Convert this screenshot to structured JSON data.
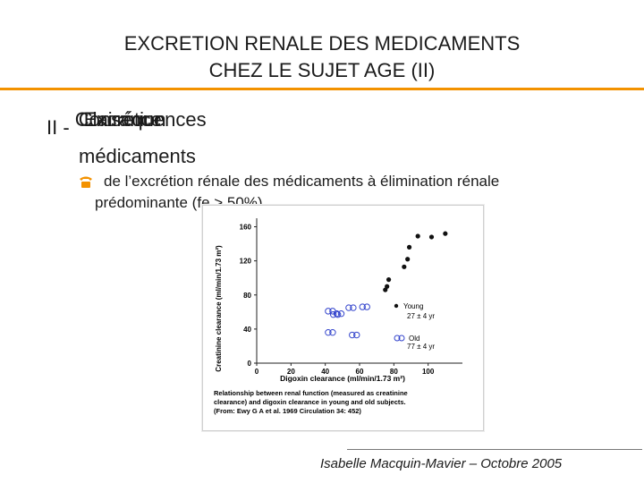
{
  "slide": {
    "title_line1": "EXCRETION RENALE DES MEDICAMENTS",
    "title_line2": "CHEZ LE SUJET AGE (II)",
    "section_prefix": "II -",
    "section_overlap": [
      "Conséquences",
      "Excrétion",
      "Clairance"
    ],
    "section_line2": "médicaments",
    "bullet_text_line1": "de l’excrétion rénale des médicaments à élimination rénale",
    "bullet_text_line2": "prédominante (fe > 50%)",
    "footer": "Isabelle Macquin-Mavier – Octobre 2005"
  },
  "figure": {
    "ylabel": "Creatinine clearance (ml/min/1.73 m²)",
    "xlabel": "Digoxin clearance (ml/min/1.73 m²)",
    "caption": "Relationship between renal function (measured as creatinine clearance) and digoxin clearance in young and old subjects. (From: Ewy G A et al. 1969 Circulation 34: 452)",
    "yticks": [
      "160",
      "120",
      "80",
      "40",
      "0"
    ],
    "xticks": [
      "0",
      "20",
      "40",
      "60",
      "80",
      "100"
    ],
    "legend_young": "Young",
    "legend_young_age": "27 ± 4 yr",
    "legend_old": "Old",
    "legend_old_age": "77 ± 4 yr"
  },
  "chart_data": {
    "type": "scatter",
    "xlabel": "Digoxin clearance (ml/min/1.73 m²)",
    "ylabel": "Creatinine clearance (ml/min/1.73 m²)",
    "xlim": [
      0,
      120
    ],
    "ylim": [
      0,
      170
    ],
    "series": [
      {
        "name": "Young",
        "x": [
          75,
          77,
          76,
          86,
          88,
          89,
          94,
          102,
          110
        ],
        "y": [
          86,
          98,
          90,
          113,
          122,
          136,
          149,
          148,
          152
        ]
      },
      {
        "name": "Old",
        "x": [
          43,
          46,
          48,
          55,
          63,
          43,
          57
        ],
        "y": [
          61,
          57,
          58,
          65,
          66,
          36,
          33
        ]
      }
    ]
  }
}
